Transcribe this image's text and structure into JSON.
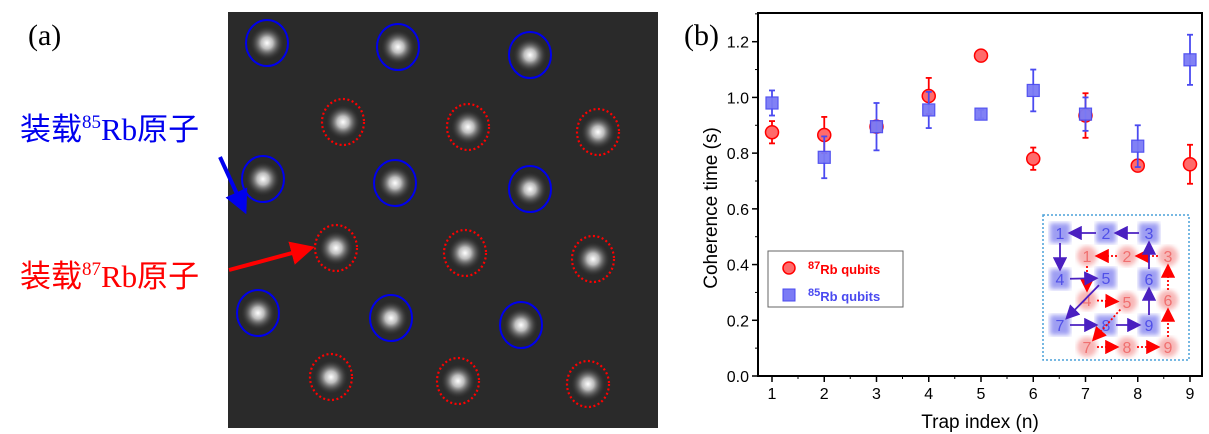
{
  "panel_a": {
    "label": "(a)",
    "annotation_85": {
      "prefix": "装载",
      "sup": "85",
      "suffix": "Rb原子",
      "color": "#0000ee"
    },
    "annotation_87": {
      "prefix": "装载",
      "sup": "87",
      "suffix": "Rb原子",
      "color": "#ff0000"
    }
  },
  "panel_b": {
    "label": "(b)"
  },
  "chart_data": {
    "type": "scatter",
    "xlabel": "Trap index (n)",
    "ylabel": "Coherence time (s)",
    "xlim": [
      0.85,
      9.15
    ],
    "ylim": [
      0,
      1.29
    ],
    "x": [
      1,
      2,
      3,
      4,
      5,
      6,
      7,
      8,
      9
    ],
    "xticks": [
      "1",
      "2",
      "3",
      "4",
      "5",
      "6",
      "7",
      "8",
      "9"
    ],
    "yticks": [
      "0.0",
      "0.2",
      "0.4",
      "0.6",
      "0.8",
      "1.0",
      "1.2"
    ],
    "grid": false,
    "legend_placement": "center-left",
    "series": [
      {
        "name_sup": "87",
        "name": "Rb qubits",
        "marker": "circle",
        "color": "#ff0000",
        "fill": "#ff6b6b",
        "values": [
          0.875,
          0.865,
          0.895,
          1.005,
          1.15,
          0.78,
          0.935,
          0.755,
          0.76
        ],
        "errors": [
          0.04,
          0.065,
          0.02,
          0.065,
          0.01,
          0.04,
          0.08,
          0.01,
          0.07
        ]
      },
      {
        "name_sup": "85",
        "name": "Rb qubits",
        "marker": "square",
        "color": "#4a4af0",
        "fill": "#7b7bf5",
        "values": [
          0.98,
          0.785,
          0.895,
          0.955,
          0.94,
          1.025,
          0.94,
          0.825,
          1.135
        ],
        "errors": [
          0.045,
          0.075,
          0.085,
          0.065,
          0.015,
          0.075,
          0.06,
          0.075,
          0.09
        ]
      }
    ],
    "inset": {
      "labels": [
        "1",
        "2",
        "3",
        "4",
        "5",
        "6",
        "7",
        "8",
        "9"
      ],
      "path_order": [
        "3",
        "2",
        "1",
        "4",
        "5",
        "7",
        "8",
        "9",
        "6",
        "3"
      ],
      "color_85": "#5050e8",
      "color_87": "#f07070"
    }
  }
}
